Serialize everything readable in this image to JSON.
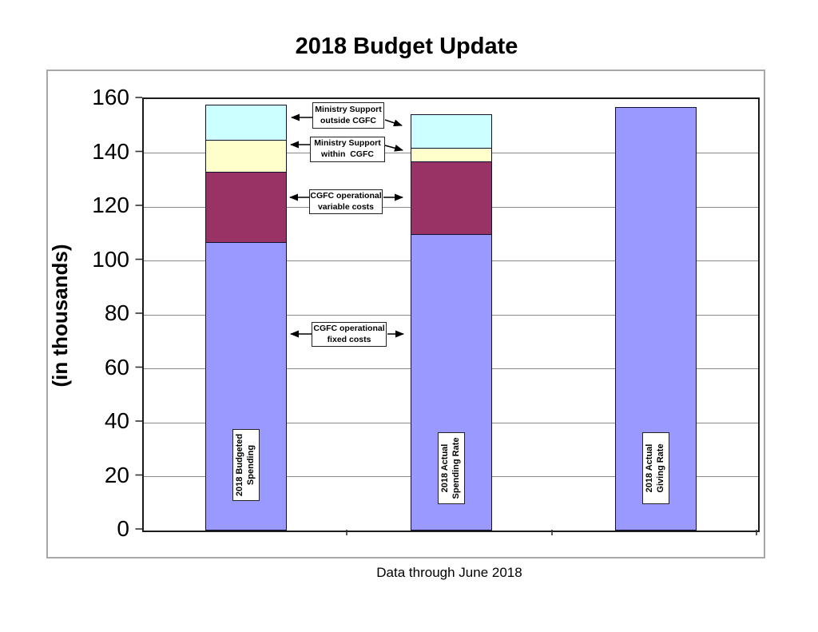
{
  "title": "2018 Budget Update",
  "caption": "Data through June 2018",
  "y_axis": {
    "label": "(in thousands)",
    "ticks": [
      160,
      140,
      120,
      100,
      80,
      60,
      40,
      20,
      0
    ]
  },
  "annotations": {
    "outside": {
      "line1": "Ministry Support",
      "line2": "outside CGFC"
    },
    "within": {
      "line1": "Ministry Support",
      "line2": "within  CGFC"
    },
    "variable": {
      "line1": "CGFC operational",
      "line2": "variable costs"
    },
    "fixed": {
      "line1": "CGFC operational",
      "line2": "fixed costs"
    }
  },
  "colors": {
    "fixed": "#9999FF",
    "variable": "#993366",
    "within": "#FFFFCC",
    "outside": "#CCFFFF",
    "gridline": "#8a8a8a",
    "axis": "#1a1a1a",
    "frame": "#a8a8a8"
  },
  "chart_data": {
    "type": "bar",
    "stacked": true,
    "title": "2018 Budget Update",
    "ylabel": "(in thousands)",
    "caption": "Data through June 2018",
    "ylim": [
      0,
      160
    ],
    "ytick_step": 20,
    "grid": true,
    "legend": "none (labels via annotation boxes and in-bar labels)",
    "categories": [
      "2018 Budgeted Spending",
      "2018 Actual Spending Rate",
      "2018 Actual Giving Rate"
    ],
    "bar_labels": [
      [
        "2018 Budgeted",
        "Spending"
      ],
      [
        "2018 Actual",
        "Spending Rate"
      ],
      [
        "2018 Actual",
        "Giving Rate"
      ]
    ],
    "series": [
      {
        "name": "CGFC operational fixed costs",
        "color": "#9999FF",
        "values": [
          107,
          110,
          157
        ]
      },
      {
        "name": "CGFC operational variable costs",
        "color": "#993366",
        "values": [
          26,
          27,
          0
        ]
      },
      {
        "name": "Ministry Support within CGFC",
        "color": "#FFFFCC",
        "values": [
          12,
          5,
          0
        ]
      },
      {
        "name": "Ministry Support outside CGFC",
        "color": "#CCFFFF",
        "values": [
          13,
          12.5,
          0
        ]
      }
    ],
    "stack_totals": [
      158,
      154.5,
      157
    ]
  }
}
